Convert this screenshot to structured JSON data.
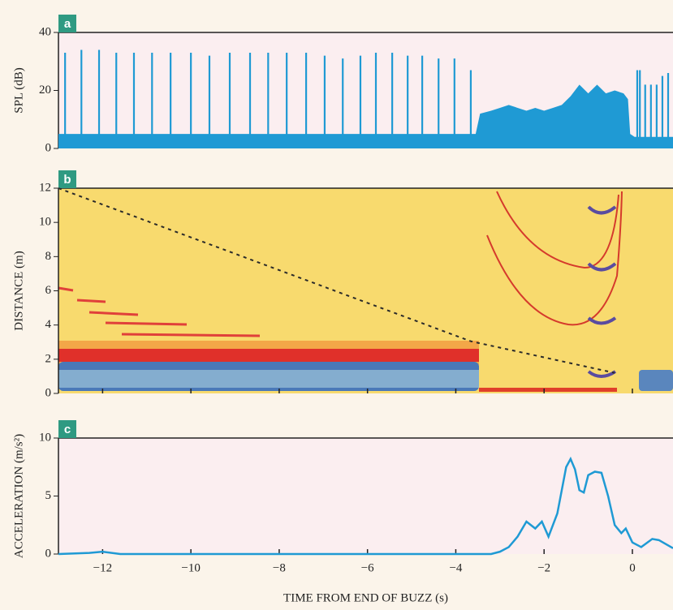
{
  "chart_data": [
    {
      "type": "spike",
      "panel_label": "a",
      "y_label": "SPL (dB)",
      "color": "#1f9ad4",
      "xlim": [
        -13,
        0.92
      ],
      "ylim": [
        0,
        40
      ],
      "yticks": [
        0,
        20,
        40
      ],
      "series": [
        {
          "style": "stem",
          "x": [
            -12.85,
            -12.48,
            -12.08,
            -11.69,
            -11.29,
            -10.88,
            -10.46,
            -10.0,
            -9.58,
            -9.12,
            -8.66,
            -8.25,
            -7.83,
            -7.39,
            -6.97,
            -6.56,
            -6.16,
            -5.81,
            -5.44,
            -5.09,
            -4.76,
            -4.39,
            -4.03,
            -3.66,
            0.11,
            0.17,
            0.29,
            0.42,
            0.55,
            0.68,
            0.81
          ],
          "values": [
            33,
            34,
            34,
            33,
            33,
            33,
            33,
            33,
            32,
            33,
            33,
            33,
            33,
            33,
            32,
            31,
            32,
            33,
            33,
            32,
            32,
            31,
            31,
            27,
            27,
            27,
            22,
            22,
            22,
            25,
            26
          ]
        },
        {
          "style": "area",
          "x": [
            -13,
            -3.6,
            -3.55,
            -3.45,
            -3.2,
            -3.0,
            -2.8,
            -2.6,
            -2.4,
            -2.2,
            -2.0,
            -1.8,
            -1.6,
            -1.4,
            -1.2,
            -1.0,
            -0.8,
            -0.6,
            -0.4,
            -0.2,
            -0.1,
            -0.05,
            0.05,
            0.92
          ],
          "values": [
            5,
            5,
            5,
            12,
            13,
            14,
            15,
            14,
            13,
            14,
            13,
            14,
            15,
            18,
            22,
            19,
            22,
            19,
            20,
            19,
            17,
            5,
            4,
            4
          ]
        }
      ]
    },
    {
      "type": "line",
      "panel_label": "b",
      "y_label": "DISTANCE (m)",
      "xlim": [
        -13,
        0.92
      ],
      "ylim": [
        0,
        12
      ],
      "yticks": [
        0,
        2,
        4,
        6,
        8,
        10,
        12
      ],
      "series": [
        {
          "x": [
            -13,
            -3.66,
            -0.4
          ],
          "values": [
            12,
            3.05,
            1.2
          ],
          "color": "#2a2a2a",
          "dash": true
        }
      ]
    },
    {
      "type": "line",
      "panel_label": "c",
      "y_label": "ACCELERATION (m/s²)",
      "x_label": "TIME FROM END OF BUZZ (s)",
      "xlim": [
        -13,
        0.92
      ],
      "ylim": [
        0,
        10
      ],
      "yticks": [
        0,
        5,
        10
      ],
      "xticks": [
        {
          "value": -12,
          "label": "−12"
        },
        {
          "value": -10,
          "label": "−10"
        },
        {
          "value": -8,
          "label": "−8"
        },
        {
          "value": -6,
          "label": "−6"
        },
        {
          "value": -4,
          "label": "−4"
        },
        {
          "value": -2,
          "label": "−2"
        },
        0
      ],
      "series": [
        {
          "color": "#1f9ad4",
          "dash": false,
          "x": [
            -13,
            -12.3,
            -12.0,
            -11.6,
            -3.2,
            -3.0,
            -2.8,
            -2.6,
            -2.4,
            -2.2,
            -2.05,
            -1.9,
            -1.7,
            -1.5,
            -1.4,
            -1.3,
            -1.2,
            -1.1,
            -1.0,
            -0.85,
            -0.7,
            -0.55,
            -0.4,
            -0.25,
            -0.15,
            0,
            0.2,
            0.45,
            0.6,
            0.92
          ],
          "values": [
            0,
            0.1,
            0.2,
            0,
            0,
            0.2,
            0.6,
            1.5,
            2.8,
            2.2,
            2.8,
            1.5,
            3.5,
            7.5,
            8.2,
            7.3,
            5.5,
            5.3,
            6.8,
            7.1,
            7.0,
            5.0,
            2.5,
            1.8,
            2.2,
            1.0,
            0.6,
            1.3,
            1.2,
            0.5
          ]
        }
      ]
    }
  ]
}
